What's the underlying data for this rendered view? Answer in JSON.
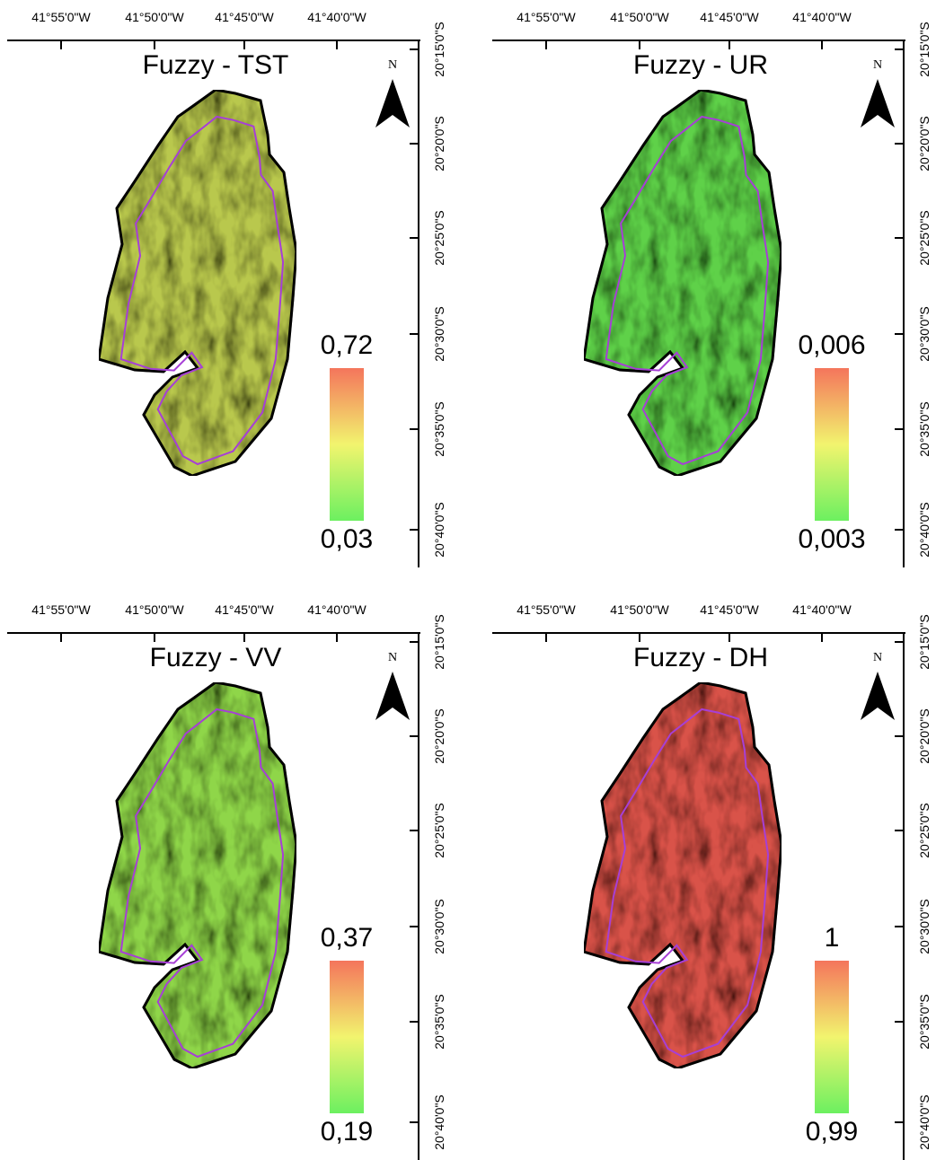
{
  "panels": [
    {
      "title": "Fuzzy - TST",
      "legend": {
        "max": "0,72",
        "min": "0,03"
      },
      "fill": "#b9c84e"
    },
    {
      "title": "Fuzzy - UR",
      "legend": {
        "max": "0,006",
        "min": "0,003"
      },
      "fill": "#5fd148"
    },
    {
      "title": "Fuzzy - VV",
      "legend": {
        "max": "0,37",
        "min": "0,19"
      },
      "fill": "#8fd64a"
    },
    {
      "title": "Fuzzy - DH",
      "legend": {
        "max": "1",
        "min": "0,99"
      },
      "fill": "#d9524a"
    }
  ],
  "longitude_ticks": [
    "41°55'0\"W",
    "41°50'0\"W",
    "41°45'0\"W",
    "41°40'0\"W"
  ],
  "latitude_ticks": [
    "20°15'0\"S",
    "20°20'0\"S",
    "20°25'0\"S",
    "20°30'0\"S",
    "20°35'0\"S",
    "20°40'0\"S"
  ],
  "north": "N"
}
